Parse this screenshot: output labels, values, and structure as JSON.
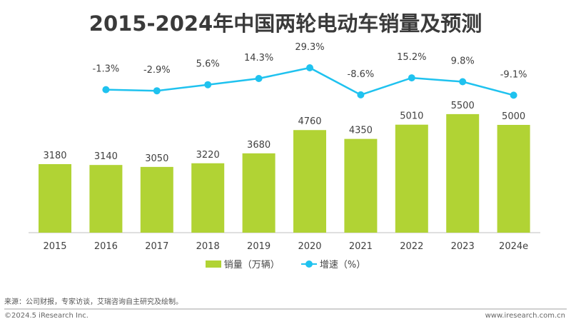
{
  "chart_data": {
    "type": "bar+line",
    "title": "2015-2024年中国两轮电动车销量及预测",
    "categories": [
      "2015",
      "2016",
      "2017",
      "2018",
      "2019",
      "2020",
      "2021",
      "2022",
      "2023",
      "2024e"
    ],
    "series": [
      {
        "name": "销量（万辆）",
        "type": "bar",
        "color": "#b1d334",
        "values": [
          3180,
          3140,
          3050,
          3220,
          3680,
          4760,
          4350,
          5010,
          5500,
          5000
        ]
      },
      {
        "name": "增速（%）",
        "type": "line",
        "color": "#1fc2ef",
        "values": [
          null,
          -1.3,
          -2.9,
          5.6,
          14.3,
          29.3,
          -8.6,
          15.2,
          9.8,
          -9.1
        ],
        "labels": [
          "",
          "-1.3%",
          "-2.9%",
          "5.6%",
          "14.3%",
          "29.3%",
          "-8.6%",
          "15.2%",
          "9.8%",
          "-9.1%"
        ]
      }
    ],
    "legend": "bottom",
    "grid": false
  },
  "footer": {
    "source": "来源：公司财报，专家访谈，艾瑞咨询自主研究及绘制。",
    "copyright": "©2024.5 iResearch Inc.",
    "website": "www.iresearch.com.cn"
  }
}
